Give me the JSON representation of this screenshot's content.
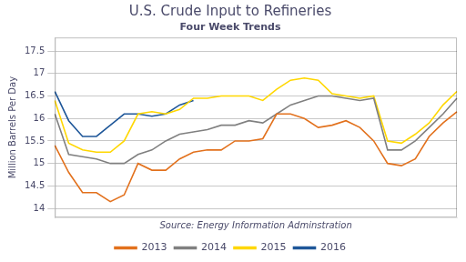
{
  "chart_data": {
    "type": "line",
    "title": "U.S. Crude Input to Refineries",
    "subtitle": "Four Week Trends",
    "ylabel": "Million Barrels Per Day",
    "annotations": [
      "Source: Energy Information Adminstration"
    ],
    "categories": [
      null,
      null,
      null,
      null,
      null,
      null,
      null,
      null,
      null,
      null,
      null,
      null,
      null,
      null,
      null,
      null,
      null,
      null,
      null,
      null,
      null,
      null,
      null,
      null,
      null,
      null,
      null,
      null,
      null,
      null
    ],
    "series": [
      {
        "name": "2013",
        "color": "#E2711D",
        "values": [
          15.4,
          14.8,
          14.35,
          14.35,
          14.15,
          14.3,
          15.0,
          14.85,
          14.85,
          15.1,
          15.25,
          15.3,
          15.3,
          15.5,
          15.5,
          15.55,
          16.1,
          16.1,
          16.0,
          15.8,
          15.85,
          15.95,
          15.8,
          15.5,
          15.0,
          14.95,
          15.1,
          15.6,
          15.9,
          16.15
        ]
      },
      {
        "name": "2014",
        "color": "#808080",
        "values": [
          16.1,
          15.2,
          15.15,
          15.1,
          15.0,
          15.0,
          15.2,
          15.3,
          15.5,
          15.65,
          15.7,
          15.75,
          15.85,
          15.85,
          15.95,
          15.9,
          16.1,
          16.3,
          16.4,
          16.5,
          16.5,
          16.45,
          16.4,
          16.45,
          15.3,
          15.3,
          15.5,
          15.8,
          16.1,
          16.45
        ]
      },
      {
        "name": "2015",
        "color": "#FFD700",
        "values": [
          16.4,
          15.45,
          15.3,
          15.25,
          15.25,
          15.5,
          16.1,
          16.15,
          16.1,
          16.2,
          16.45,
          16.45,
          16.5,
          16.5,
          16.5,
          16.4,
          16.65,
          16.85,
          16.9,
          16.85,
          16.55,
          16.5,
          16.45,
          16.5,
          15.5,
          15.45,
          15.65,
          15.9,
          16.3,
          16.6
        ]
      },
      {
        "name": "2016",
        "color": "#1F5799",
        "values": [
          16.6,
          15.95,
          15.6,
          15.6,
          15.85,
          16.1,
          16.1,
          16.05,
          16.1,
          16.3,
          16.4,
          null,
          null,
          null,
          null,
          null,
          null,
          null,
          null,
          null,
          null,
          null,
          null,
          null,
          null,
          null,
          null,
          null,
          null,
          null
        ]
      }
    ],
    "ylim": [
      13.8,
      17.8
    ],
    "yticks": [
      14,
      14.5,
      15,
      15.5,
      16,
      16.5,
      17,
      17.5
    ],
    "grid": true,
    "legend": "bottom",
    "tick_labels": "y"
  }
}
